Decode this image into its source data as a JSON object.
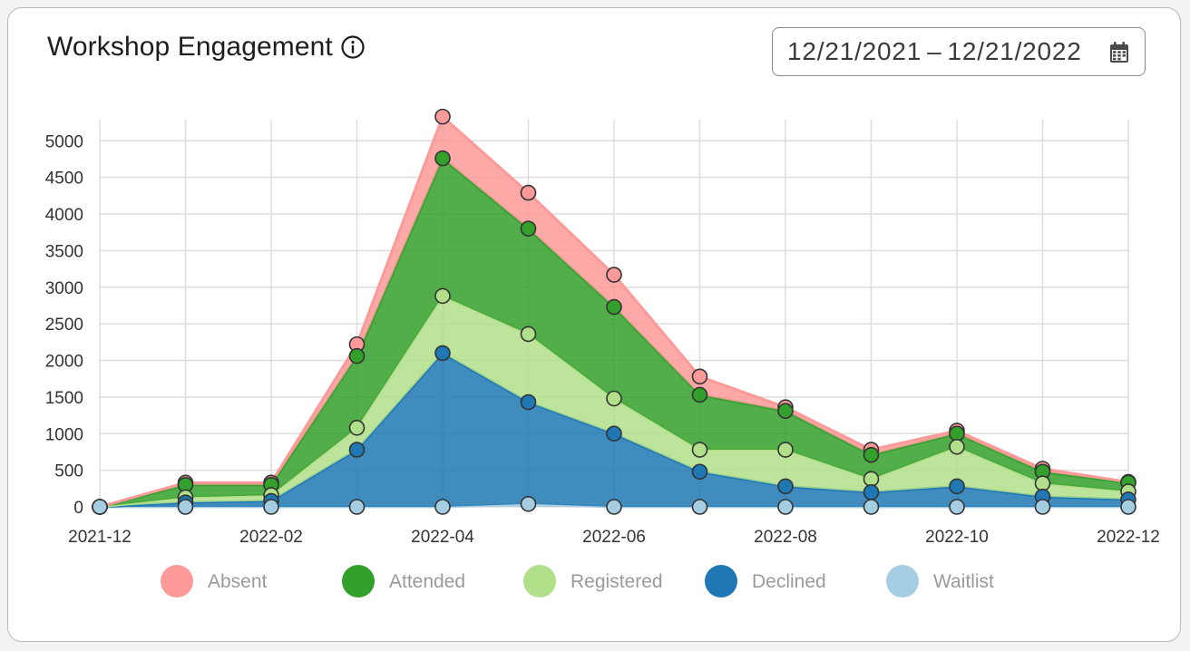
{
  "header": {
    "title": "Workshop Engagement",
    "info_icon": "info-circle-icon"
  },
  "date_range": {
    "start": "12/21/2021",
    "separator": "–",
    "end": "12/21/2022",
    "icon": "calendar-icon"
  },
  "chart_data": {
    "type": "area",
    "stacked": true,
    "x": [
      "2021-12",
      "2022-01",
      "2022-02",
      "2022-03",
      "2022-04",
      "2022-05",
      "2022-06",
      "2022-07",
      "2022-08",
      "2022-09",
      "2022-10",
      "2022-11",
      "2022-12"
    ],
    "x_tick_labels": [
      "2021-12",
      "2022-02",
      "2022-04",
      "2022-06",
      "2022-08",
      "2022-10",
      "2022-12"
    ],
    "y_ticks": [
      0,
      500,
      1000,
      1500,
      2000,
      2500,
      3000,
      3500,
      4000,
      4500,
      5000
    ],
    "ylim": [
      0,
      5350
    ],
    "grid": true,
    "legend_position": "bottom",
    "series": [
      {
        "name": "Waitlist",
        "color": "#a6cee3",
        "values": [
          0,
          0,
          0,
          0,
          0,
          40,
          0,
          0,
          0,
          0,
          0,
          0,
          0
        ]
      },
      {
        "name": "Declined",
        "color": "#1f78b4",
        "values": [
          0,
          60,
          80,
          780,
          2100,
          1390,
          1000,
          480,
          280,
          200,
          280,
          140,
          100
        ]
      },
      {
        "name": "Registered",
        "color": "#b2df8a",
        "values": [
          0,
          70,
          80,
          300,
          780,
          930,
          480,
          300,
          500,
          180,
          540,
          180,
          110
        ]
      },
      {
        "name": "Attended",
        "color": "#33a02c",
        "values": [
          0,
          170,
          140,
          980,
          1880,
          1440,
          1250,
          750,
          530,
          330,
          180,
          160,
          120
        ]
      },
      {
        "name": "Absent",
        "color": "#fb9a99",
        "values": [
          0,
          30,
          30,
          160,
          570,
          490,
          440,
          250,
          50,
          70,
          40,
          40,
          10
        ]
      }
    ],
    "legend_order": [
      "Absent",
      "Attended",
      "Registered",
      "Declined",
      "Waitlist"
    ]
  }
}
